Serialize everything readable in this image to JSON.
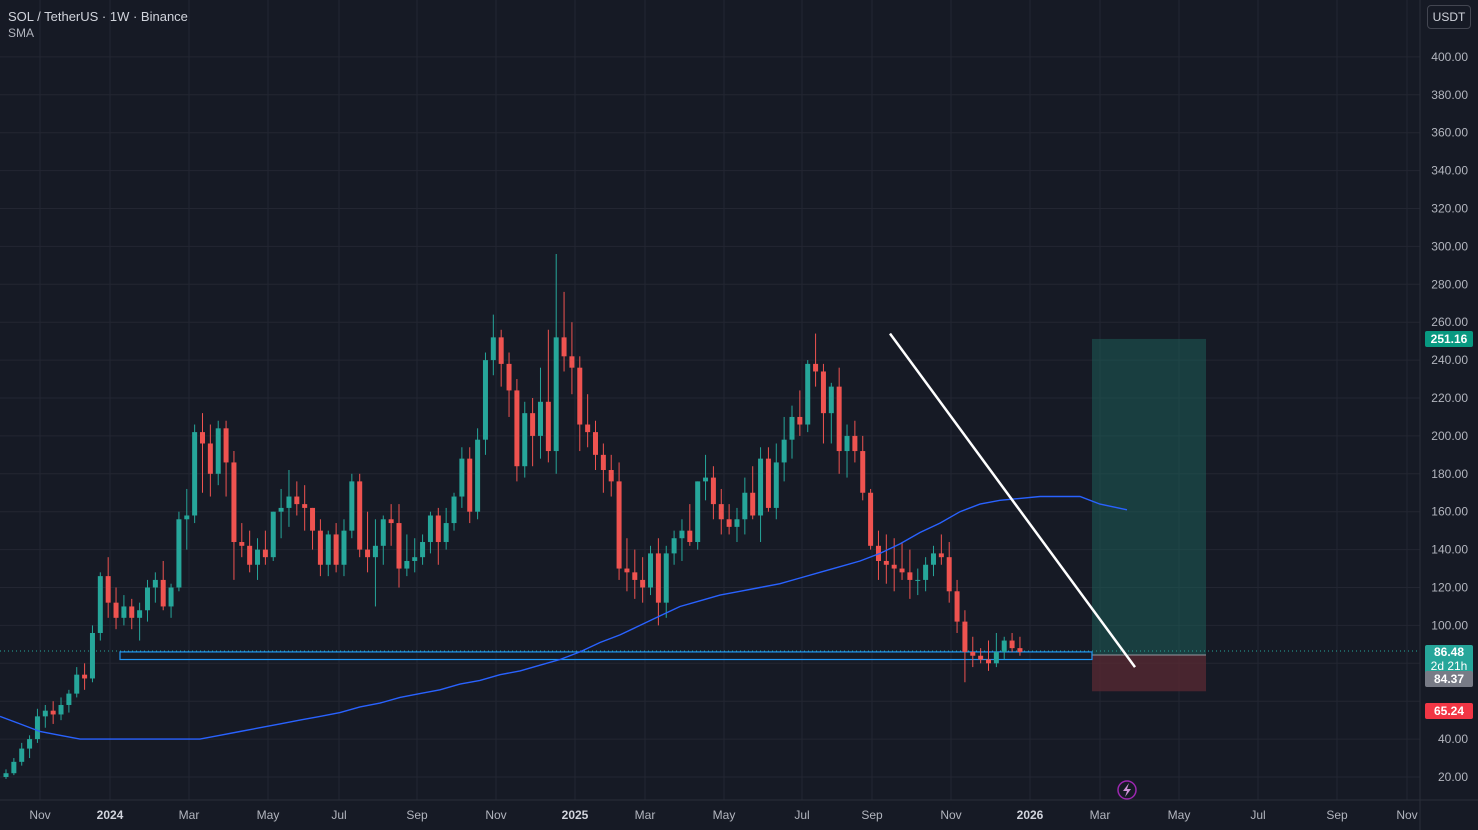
{
  "legend": {
    "title": "SOL / TetherUS · 1W · Binance",
    "indicator": "SMA"
  },
  "currency_button": "USDT",
  "price_axis": {
    "ticks": [
      20,
      40,
      60,
      80,
      100,
      120,
      140,
      160,
      180,
      200,
      220,
      240,
      260,
      280,
      300,
      320,
      340,
      360,
      380,
      400
    ],
    "tick_labels": [
      "20.00",
      "40.00",
      "",
      "",
      "100.00",
      "120.00",
      "140.00",
      "160.00",
      "180.00",
      "200.00",
      "220.00",
      "240.00",
      "260.00",
      "280.00",
      "300.00",
      "320.00",
      "340.00",
      "360.00",
      "380.00",
      "400.00"
    ]
  },
  "price_tags": {
    "target": {
      "label": "251.16",
      "color": "#089981"
    },
    "current": {
      "label": "86.48",
      "countdown": "2d 21h",
      "color": "#26a69a"
    },
    "entry": {
      "label": "84.37",
      "color": "#787b86"
    },
    "stop": {
      "label": "65.24",
      "color": "#f23645"
    }
  },
  "time_axis": {
    "labels": [
      {
        "text": "Nov",
        "bold": false
      },
      {
        "text": "2024",
        "bold": true
      },
      {
        "text": "Mar",
        "bold": false
      },
      {
        "text": "May",
        "bold": false
      },
      {
        "text": "Jul",
        "bold": false
      },
      {
        "text": "Sep",
        "bold": false
      },
      {
        "text": "Nov",
        "bold": false
      },
      {
        "text": "2025",
        "bold": true
      },
      {
        "text": "Mar",
        "bold": false
      },
      {
        "text": "May",
        "bold": false
      },
      {
        "text": "Jul",
        "bold": false
      },
      {
        "text": "Sep",
        "bold": false
      },
      {
        "text": "Nov",
        "bold": false
      },
      {
        "text": "2026",
        "bold": true
      },
      {
        "text": "Mar",
        "bold": false
      },
      {
        "text": "May",
        "bold": false
      },
      {
        "text": "Jul",
        "bold": false
      },
      {
        "text": "Sep",
        "bold": false
      },
      {
        "text": "Nov",
        "bold": false
      }
    ]
  },
  "colors": {
    "up": "#26a69a",
    "down": "#ef5350",
    "sma": "#2962ff",
    "trendline": "#ffffff",
    "support_box": "#2196f3",
    "profit_zone": "#1e5c58",
    "loss_zone": "#5a2a33",
    "grid": "#232632",
    "background": "#161a25"
  },
  "chart_data": {
    "type": "candlestick",
    "title": "SOL / TetherUS · 1W · Binance",
    "ylim": [
      10,
      420
    ],
    "series_ohlc": [
      [
        20,
        24,
        19,
        22
      ],
      [
        22,
        30,
        21,
        28
      ],
      [
        28,
        38,
        26,
        35
      ],
      [
        35,
        42,
        30,
        40
      ],
      [
        40,
        56,
        38,
        52
      ],
      [
        52,
        58,
        46,
        55
      ],
      [
        55,
        60,
        48,
        53
      ],
      [
        53,
        62,
        50,
        58
      ],
      [
        58,
        66,
        54,
        64
      ],
      [
        64,
        78,
        62,
        74
      ],
      [
        74,
        80,
        66,
        72
      ],
      [
        72,
        100,
        70,
        96
      ],
      [
        96,
        128,
        92,
        126
      ],
      [
        126,
        136,
        104,
        112
      ],
      [
        112,
        120,
        98,
        104
      ],
      [
        104,
        116,
        100,
        110
      ],
      [
        110,
        114,
        98,
        104
      ],
      [
        104,
        112,
        92,
        108
      ],
      [
        108,
        124,
        102,
        120
      ],
      [
        120,
        128,
        112,
        124
      ],
      [
        124,
        134,
        108,
        110
      ],
      [
        110,
        122,
        104,
        120
      ],
      [
        120,
        160,
        118,
        156
      ],
      [
        156,
        172,
        140,
        158
      ],
      [
        158,
        206,
        154,
        202
      ],
      [
        202,
        212,
        170,
        196
      ],
      [
        196,
        206,
        168,
        180
      ],
      [
        180,
        208,
        174,
        204
      ],
      [
        204,
        208,
        168,
        186
      ],
      [
        186,
        192,
        124,
        144
      ],
      [
        144,
        154,
        136,
        142
      ],
      [
        142,
        150,
        128,
        132
      ],
      [
        132,
        146,
        124,
        140
      ],
      [
        140,
        150,
        132,
        136
      ],
      [
        136,
        160,
        134,
        160
      ],
      [
        160,
        172,
        146,
        162
      ],
      [
        162,
        182,
        152,
        168
      ],
      [
        168,
        176,
        158,
        164
      ],
      [
        164,
        174,
        150,
        162
      ],
      [
        162,
        162,
        140,
        150
      ],
      [
        150,
        156,
        126,
        132
      ],
      [
        132,
        150,
        126,
        148
      ],
      [
        148,
        154,
        128,
        132
      ],
      [
        132,
        156,
        126,
        150
      ],
      [
        150,
        180,
        146,
        176
      ],
      [
        176,
        180,
        136,
        140
      ],
      [
        140,
        160,
        128,
        136
      ],
      [
        136,
        156,
        110,
        142
      ],
      [
        142,
        158,
        132,
        156
      ],
      [
        156,
        164,
        142,
        154
      ],
      [
        154,
        164,
        120,
        130
      ],
      [
        130,
        148,
        126,
        134
      ],
      [
        134,
        146,
        128,
        136
      ],
      [
        136,
        148,
        132,
        144
      ],
      [
        144,
        160,
        138,
        158
      ],
      [
        158,
        162,
        132,
        144
      ],
      [
        144,
        162,
        140,
        154
      ],
      [
        154,
        170,
        150,
        168
      ],
      [
        168,
        194,
        162,
        188
      ],
      [
        188,
        194,
        154,
        160
      ],
      [
        160,
        204,
        156,
        198
      ],
      [
        198,
        244,
        190,
        240
      ],
      [
        240,
        264,
        232,
        252
      ],
      [
        252,
        256,
        226,
        238
      ],
      [
        238,
        244,
        210,
        224
      ],
      [
        224,
        230,
        176,
        184
      ],
      [
        184,
        218,
        178,
        212
      ],
      [
        212,
        220,
        184,
        200
      ],
      [
        200,
        236,
        188,
        218
      ],
      [
        218,
        256,
        186,
        192
      ],
      [
        192,
        296,
        180,
        252
      ],
      [
        252,
        276,
        234,
        242
      ],
      [
        242,
        260,
        222,
        236
      ],
      [
        236,
        242,
        192,
        206
      ],
      [
        206,
        222,
        194,
        202
      ],
      [
        202,
        208,
        182,
        190
      ],
      [
        190,
        196,
        170,
        182
      ],
      [
        182,
        190,
        168,
        176
      ],
      [
        176,
        186,
        124,
        130
      ],
      [
        130,
        146,
        118,
        128
      ],
      [
        128,
        140,
        114,
        124
      ],
      [
        124,
        136,
        112,
        120
      ],
      [
        120,
        142,
        116,
        138
      ],
      [
        138,
        146,
        100,
        112
      ],
      [
        112,
        142,
        104,
        138
      ],
      [
        138,
        150,
        132,
        146
      ],
      [
        146,
        156,
        134,
        150
      ],
      [
        150,
        164,
        142,
        144
      ],
      [
        144,
        176,
        140,
        176
      ],
      [
        176,
        190,
        166,
        178
      ],
      [
        178,
        184,
        156,
        164
      ],
      [
        164,
        172,
        148,
        156
      ],
      [
        156,
        164,
        148,
        152
      ],
      [
        152,
        162,
        144,
        156
      ],
      [
        156,
        178,
        148,
        170
      ],
      [
        170,
        184,
        156,
        158
      ],
      [
        158,
        194,
        144,
        188
      ],
      [
        188,
        194,
        160,
        162
      ],
      [
        162,
        196,
        156,
        186
      ],
      [
        186,
        210,
        176,
        198
      ],
      [
        198,
        216,
        188,
        210
      ],
      [
        210,
        224,
        200,
        206
      ],
      [
        206,
        240,
        202,
        238
      ],
      [
        238,
        254,
        226,
        234
      ],
      [
        234,
        238,
        196,
        212
      ],
      [
        212,
        228,
        196,
        226
      ],
      [
        226,
        236,
        180,
        192
      ],
      [
        192,
        206,
        178,
        200
      ],
      [
        200,
        208,
        186,
        192
      ],
      [
        192,
        200,
        166,
        170
      ],
      [
        170,
        172,
        140,
        142
      ],
      [
        142,
        150,
        124,
        134
      ],
      [
        134,
        148,
        122,
        132
      ],
      [
        132,
        146,
        118,
        130
      ],
      [
        130,
        144,
        124,
        128
      ],
      [
        128,
        140,
        114,
        124
      ],
      [
        124,
        130,
        116,
        124
      ],
      [
        124,
        136,
        118,
        132
      ],
      [
        132,
        142,
        126,
        138
      ],
      [
        138,
        148,
        132,
        136
      ],
      [
        136,
        144,
        112,
        118
      ],
      [
        118,
        124,
        96,
        102
      ],
      [
        102,
        108,
        70,
        86
      ],
      [
        86,
        94,
        78,
        84
      ],
      [
        84,
        88,
        80,
        82
      ],
      [
        82,
        92,
        76,
        80
      ],
      [
        80,
        96,
        78,
        86
      ],
      [
        86,
        94,
        82,
        92
      ],
      [
        92,
        96,
        86,
        88
      ],
      [
        88,
        94,
        84,
        86
      ]
    ],
    "sma_x": [
      0,
      20,
      40,
      60,
      80,
      100,
      120,
      140,
      160,
      180,
      200,
      220,
      240,
      260,
      280,
      300,
      320,
      340,
      360,
      380,
      400,
      420,
      440,
      460,
      480,
      500,
      520,
      540,
      560,
      580,
      600,
      620,
      640,
      660,
      680,
      700,
      720,
      740,
      760,
      780,
      800,
      820,
      840,
      860,
      880,
      900,
      920,
      940,
      960,
      980,
      1000,
      1020,
      1040,
      1060,
      1080,
      1100,
      1127
    ],
    "sma_y": [
      52,
      48,
      44,
      42,
      40,
      40,
      40,
      40,
      40,
      40,
      40,
      42,
      44,
      46,
      48,
      50,
      52,
      54,
      57,
      59,
      62,
      64,
      66,
      69,
      71,
      74,
      76,
      79,
      82,
      86,
      91,
      95,
      100,
      105,
      110,
      113,
      116,
      118,
      120,
      122,
      125,
      128,
      131,
      134,
      138,
      143,
      149,
      154,
      160,
      164,
      166,
      167,
      168,
      168,
      168,
      164,
      161
    ],
    "trendline": {
      "from": {
        "x": 890,
        "y": 254
      },
      "to": {
        "x": 1135,
        "y": 78
      }
    },
    "support_box": {
      "x_start": 120,
      "x_end": 1092,
      "y_top": 86,
      "y_bottom": 82
    },
    "long_position": {
      "x_start": 1092,
      "x_end": 1206,
      "target": 251.16,
      "entry": 84.37,
      "stop": 65.24
    }
  }
}
